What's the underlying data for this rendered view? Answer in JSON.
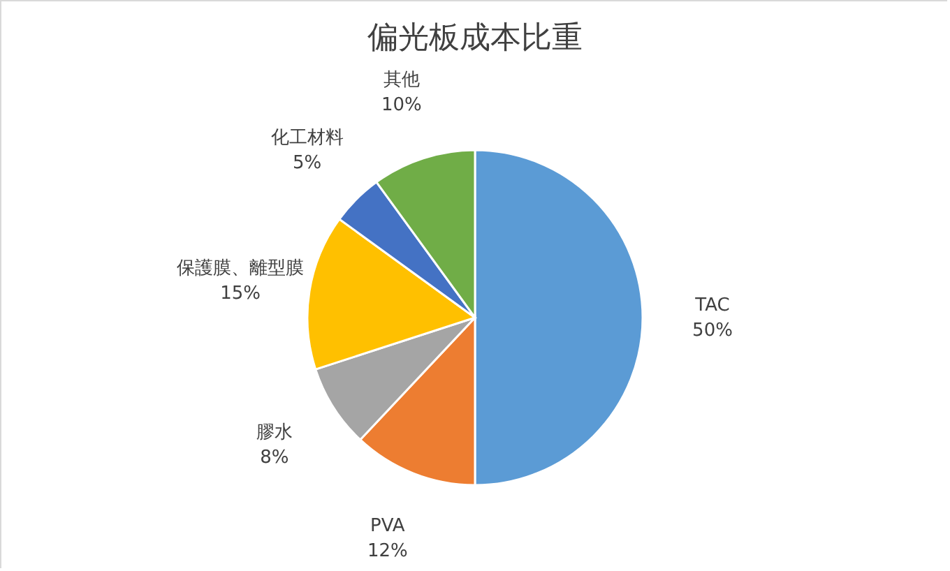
{
  "chart_data": {
    "type": "pie",
    "title": "偏光板成本比重",
    "categories": [
      "TAC",
      "PVA",
      "膠水",
      "保護膜、離型膜",
      "化工材料",
      "其他"
    ],
    "values": [
      50,
      12,
      8,
      15,
      5,
      10
    ],
    "value_labels": [
      "50%",
      "12%",
      "8%",
      "15%",
      "5%",
      "10%"
    ],
    "colors": [
      "#5b9bd5",
      "#ed7d31",
      "#a5a5a5",
      "#ffc000",
      "#4472c4",
      "#70ad47"
    ],
    "legend": false
  }
}
